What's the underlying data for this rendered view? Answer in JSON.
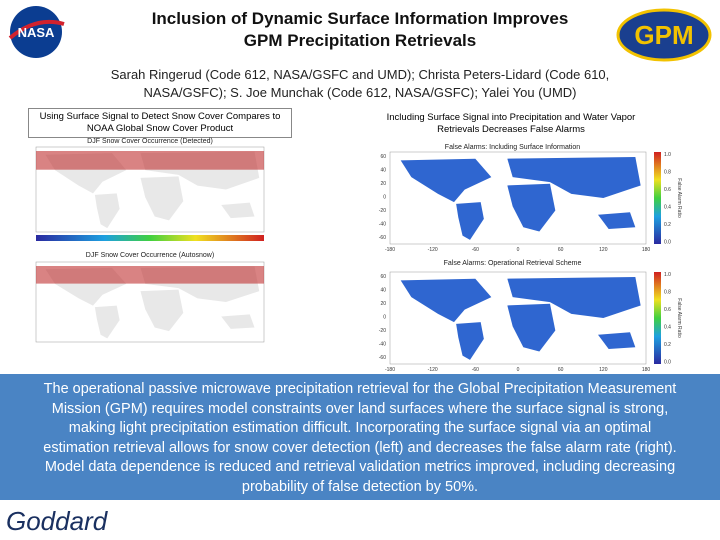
{
  "header": {
    "title_line1": "Inclusion of Dynamic Surface Information Improves",
    "title_line2": "GPM Precipitation Retrievals",
    "authors": "Sarah Ringerud (Code 612, NASA/GSFC and UMD); Christa Peters-Lidard (Code 610, NASA/GSFC); S. Joe Munchak (Code 612, NASA/GSFC); Yalei You (UMD)"
  },
  "logos": {
    "nasa": "NASA",
    "gpm": "GPM",
    "goddard": "Goddard"
  },
  "left": {
    "caption": "Using Surface Signal to Detect Snow Cover Compares to NOAA Global Snow Cover Product",
    "panels": [
      {
        "title": "DJF Snow Cover Occurrence (Detected)"
      },
      {
        "title": "DJF Snow Cover Occurrence (Autosnow)"
      }
    ]
  },
  "right": {
    "caption": "Including Surface Signal into Precipitation and Water Vapor Retrievals Decreases False Alarms",
    "panels": [
      {
        "title": "False Alarms: Including Surface Information"
      },
      {
        "title": "False Alarms: Operational Retrieval Scheme"
      }
    ],
    "colorbar_label": "False Alarm Ratio",
    "colorbar_ticks": [
      "1.0",
      "0.8",
      "0.6",
      "0.4",
      "0.2",
      "0.0"
    ],
    "lon_ticks": [
      "-180",
      "-120",
      "-60",
      "0",
      "60",
      "120",
      "180"
    ],
    "lat_ticks": [
      "60",
      "40",
      "20",
      "0",
      "-20",
      "-40",
      "-60"
    ]
  },
  "summary": "The operational passive microwave precipitation retrieval for the Global Precipitation Measurement Mission (GPM) requires model constraints over land surfaces where the surface signal is strong, making light precipitation estimation difficult. Incorporating the surface signal via an optimal estimation retrieval allows for snow cover detection (left) and decreases the false alarm rate (right). Model data dependence is reduced and retrieval validation metrics improved, including decreasing probability of false detection by 50%."
}
